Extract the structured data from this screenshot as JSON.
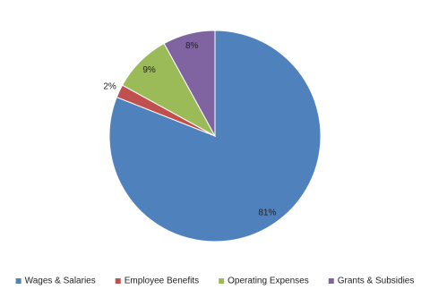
{
  "chart_data": {
    "type": "pie",
    "categories": [
      "Wages & Salaries",
      "Employee Benefits",
      "Operating Expenses",
      "Grants & Subsidies"
    ],
    "values": [
      81,
      2,
      9,
      8
    ],
    "value_labels": [
      "81%",
      "2%",
      "9%",
      "8%"
    ],
    "colors": [
      "#4f81bd",
      "#c0504d",
      "#9bbb59",
      "#8064a2"
    ],
    "legend": "bottom"
  }
}
